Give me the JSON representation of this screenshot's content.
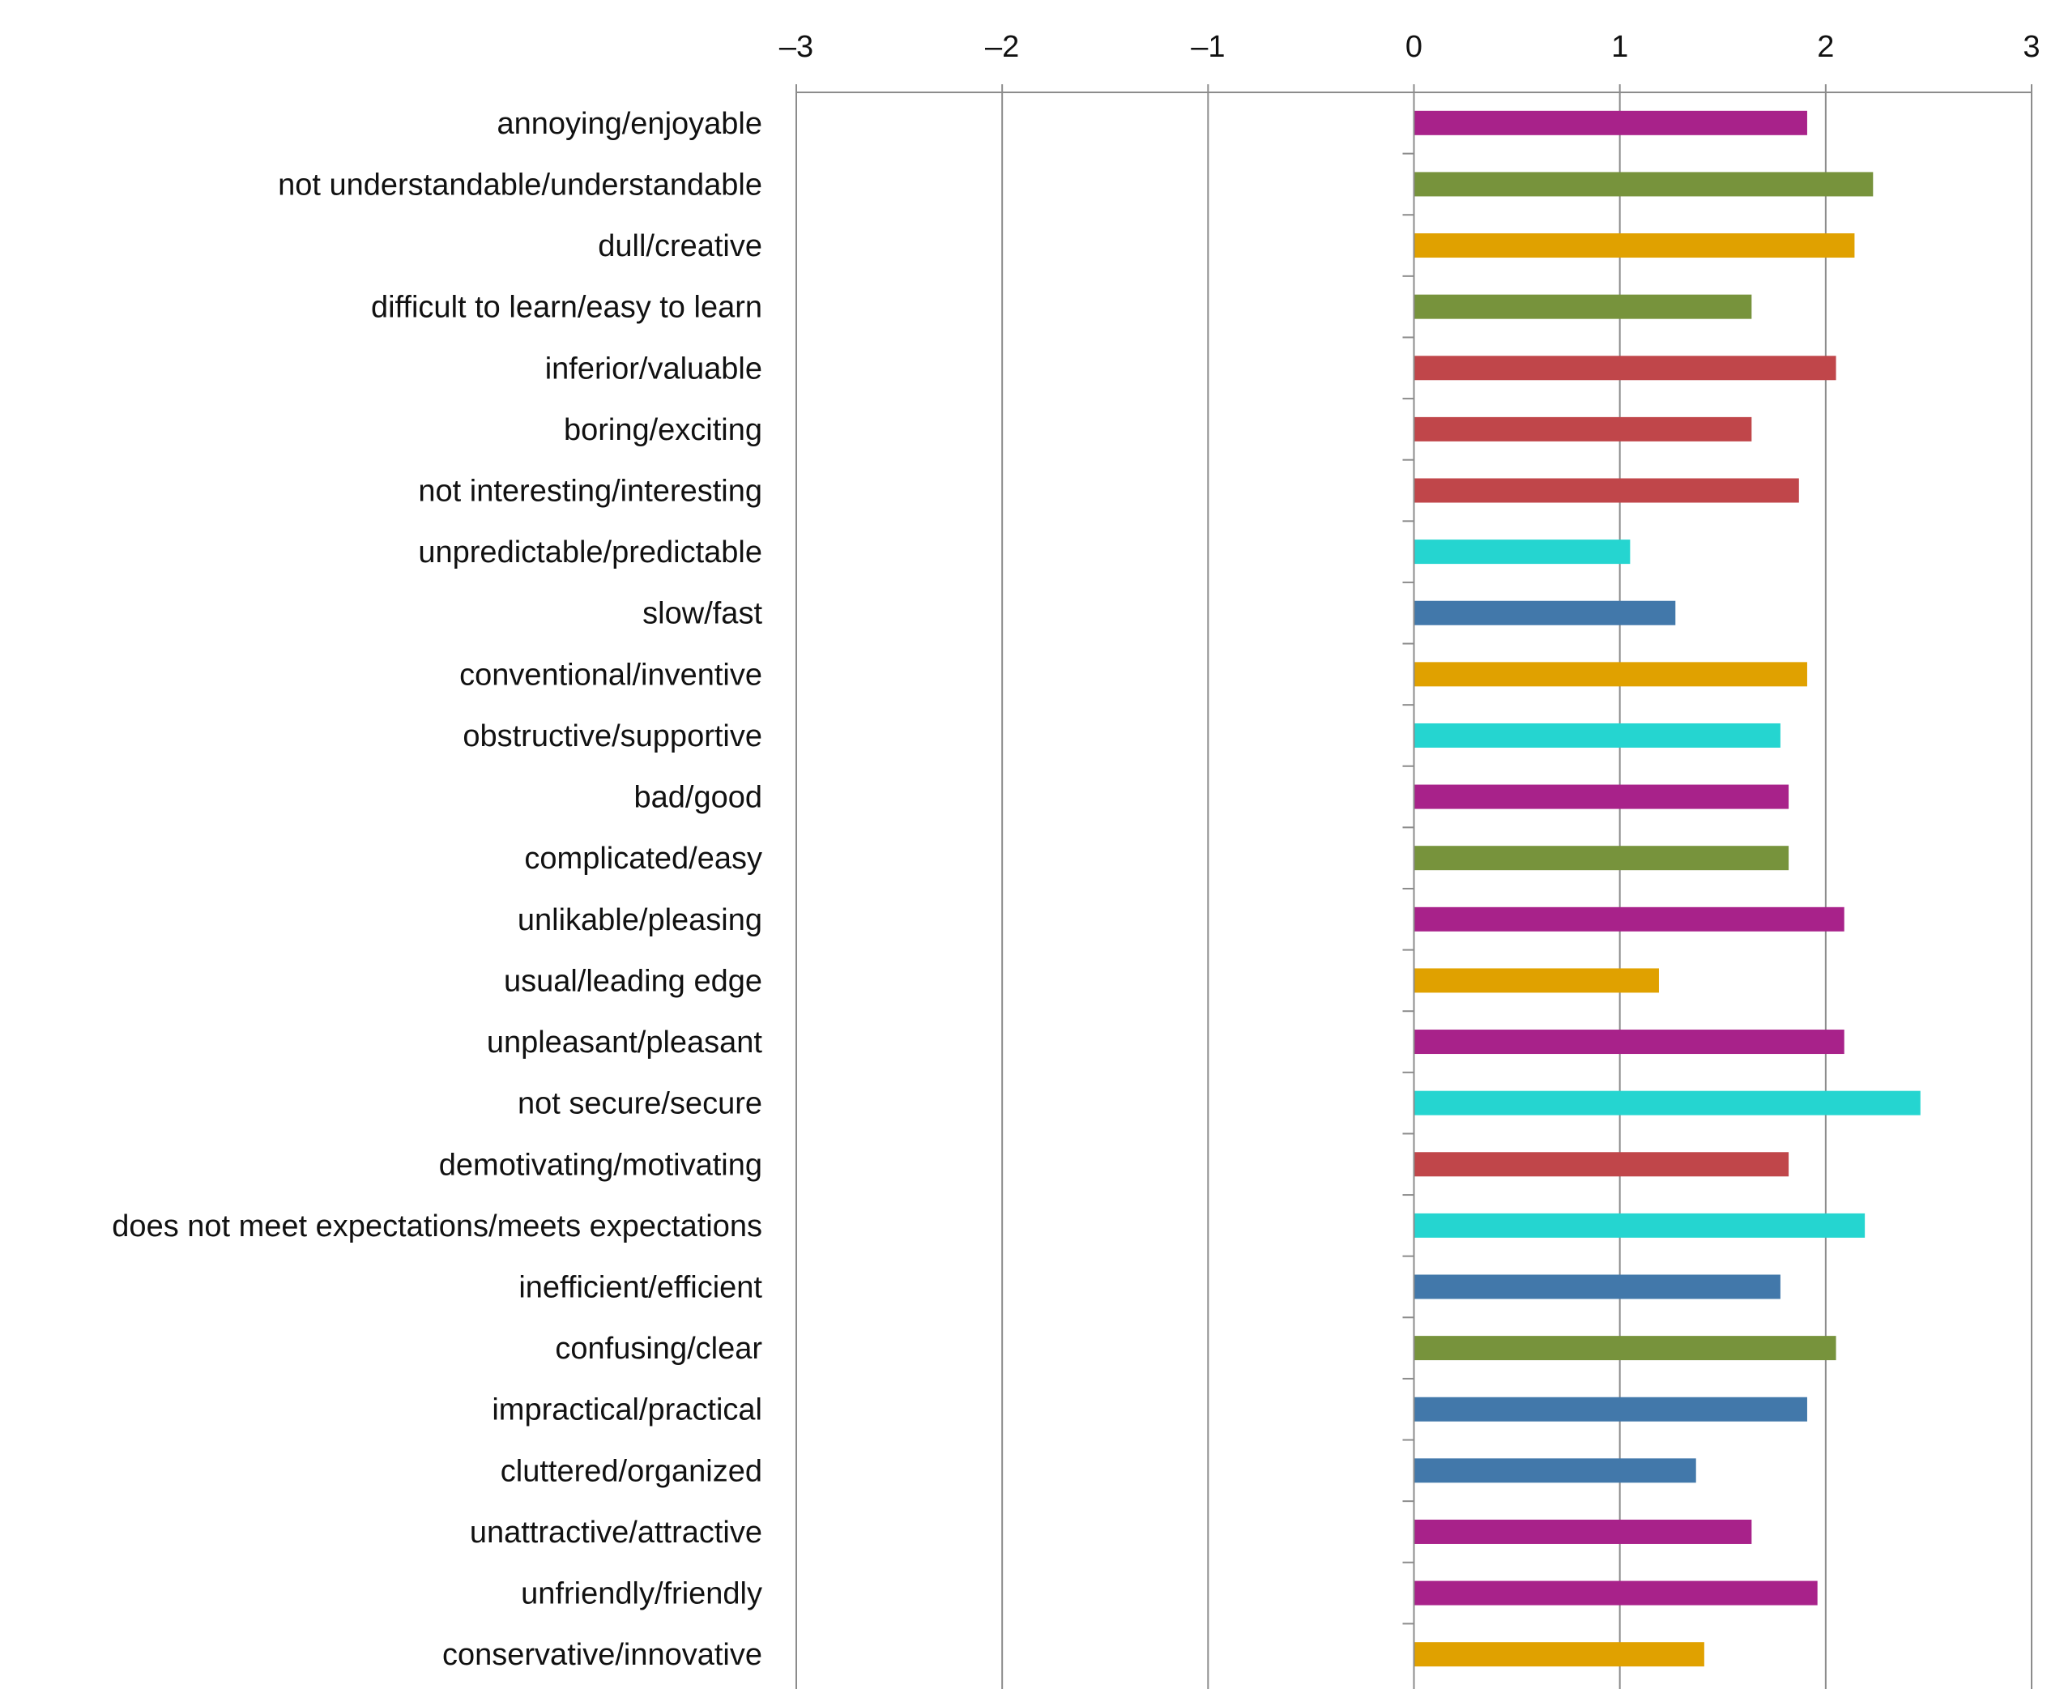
{
  "chart_data": {
    "type": "bar",
    "orientation": "horizontal",
    "title": "",
    "xlabel": "",
    "ylabel": "",
    "xlim": [
      -3,
      3
    ],
    "xticks": [
      -3,
      -2,
      -1,
      0,
      1,
      2,
      3
    ],
    "xtick_labels": [
      "–3",
      "–2",
      "–1",
      "0",
      "1",
      "2",
      "3"
    ],
    "grid": true,
    "legend": "none",
    "categories": [
      "annoying/enjoyable",
      "not understandable/understandable",
      "dull/creative",
      "difficult to learn/easy to learn",
      "inferior/valuable",
      "boring/exciting",
      "not interesting/interesting",
      "unpredictable/predictable",
      "slow/fast",
      "conventional/inventive",
      "obstructive/supportive",
      "bad/good",
      "complicated/easy",
      "unlikable/pleasing",
      "usual/leading edge",
      "unpleasant/pleasant",
      "not secure/secure",
      "demotivating/motivating",
      "does not meet expectations/meets expectations",
      "inefficient/efficient",
      "confusing/clear",
      "impractical/practical",
      "cluttered/organized",
      "unattractive/attractive",
      "unfriendly/friendly",
      "conservative/innovative"
    ],
    "values": [
      1.91,
      2.23,
      2.14,
      1.64,
      2.05,
      1.64,
      1.87,
      1.05,
      1.27,
      1.91,
      1.78,
      1.82,
      1.82,
      2.09,
      1.19,
      2.09,
      2.46,
      1.82,
      2.19,
      1.78,
      2.05,
      1.91,
      1.37,
      1.64,
      1.96,
      1.41
    ],
    "colors": [
      "#A8228A",
      "#77933C",
      "#E0A100",
      "#77933C",
      "#C0464A",
      "#C0464A",
      "#C0464A",
      "#25D5D0",
      "#4278AA",
      "#E0A100",
      "#25D5D0",
      "#A8228A",
      "#77933C",
      "#A8228A",
      "#E0A100",
      "#A8228A",
      "#25D5D0",
      "#C0464A",
      "#25D5D0",
      "#4278AA",
      "#77933C",
      "#4278AA",
      "#4278AA",
      "#A8228A",
      "#A8228A",
      "#E0A100"
    ]
  }
}
